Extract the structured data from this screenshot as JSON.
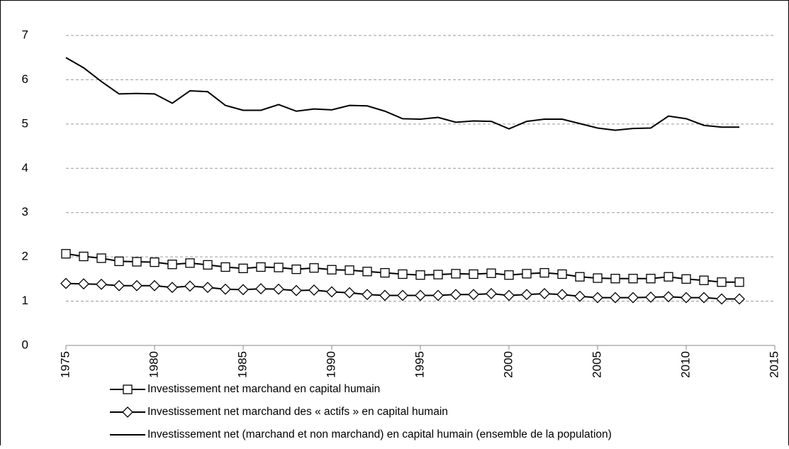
{
  "chart_data": {
    "type": "line",
    "x": [
      1975,
      1976,
      1977,
      1978,
      1979,
      1980,
      1981,
      1982,
      1983,
      1984,
      1985,
      1986,
      1987,
      1988,
      1989,
      1990,
      1991,
      1992,
      1993,
      1994,
      1995,
      1996,
      1997,
      1998,
      1999,
      2000,
      2001,
      2002,
      2003,
      2004,
      2005,
      2006,
      2007,
      2008,
      2009,
      2010,
      2011,
      2012,
      2013
    ],
    "xlim": [
      1975,
      2015
    ],
    "xticks": [
      1975,
      1980,
      1985,
      1990,
      1995,
      2000,
      2005,
      2010,
      2015
    ],
    "ylim": [
      0,
      7
    ],
    "yticks": [
      0,
      1,
      2,
      3,
      4,
      5,
      6,
      7
    ],
    "grid": true,
    "series": [
      {
        "name": "Investissement net marchand en capital humain",
        "color": "#000000",
        "marker": "square",
        "values": [
          2.07,
          2.01,
          1.97,
          1.9,
          1.89,
          1.88,
          1.83,
          1.86,
          1.82,
          1.77,
          1.74,
          1.77,
          1.76,
          1.72,
          1.75,
          1.71,
          1.7,
          1.67,
          1.64,
          1.61,
          1.59,
          1.6,
          1.62,
          1.61,
          1.63,
          1.59,
          1.62,
          1.64,
          1.61,
          1.55,
          1.52,
          1.51,
          1.51,
          1.51,
          1.55,
          1.5,
          1.47,
          1.43,
          1.43
        ]
      },
      {
        "name": "Investissement net marchand des « actifs » en capital humain",
        "color": "#000000",
        "marker": "diamond",
        "values": [
          1.4,
          1.39,
          1.38,
          1.35,
          1.35,
          1.35,
          1.31,
          1.34,
          1.31,
          1.27,
          1.26,
          1.28,
          1.27,
          1.24,
          1.25,
          1.21,
          1.19,
          1.15,
          1.13,
          1.13,
          1.13,
          1.13,
          1.15,
          1.15,
          1.17,
          1.13,
          1.15,
          1.17,
          1.15,
          1.11,
          1.08,
          1.08,
          1.08,
          1.09,
          1.1,
          1.08,
          1.08,
          1.05,
          1.05
        ]
      },
      {
        "name": "Investissement net (marchand et non marchand) en capital humain (ensemble de la population)",
        "color": "#000000",
        "marker": null,
        "values": [
          6.5,
          6.27,
          5.96,
          5.68,
          5.69,
          5.68,
          5.47,
          5.75,
          5.73,
          5.42,
          5.31,
          5.31,
          5.44,
          5.29,
          5.34,
          5.32,
          5.42,
          5.41,
          5.29,
          5.12,
          5.11,
          5.15,
          5.04,
          5.07,
          5.06,
          4.89,
          5.06,
          5.11,
          5.11,
          5.01,
          4.91,
          4.86,
          4.9,
          4.91,
          5.18,
          5.12,
          4.97,
          4.93,
          4.93
        ]
      }
    ]
  }
}
